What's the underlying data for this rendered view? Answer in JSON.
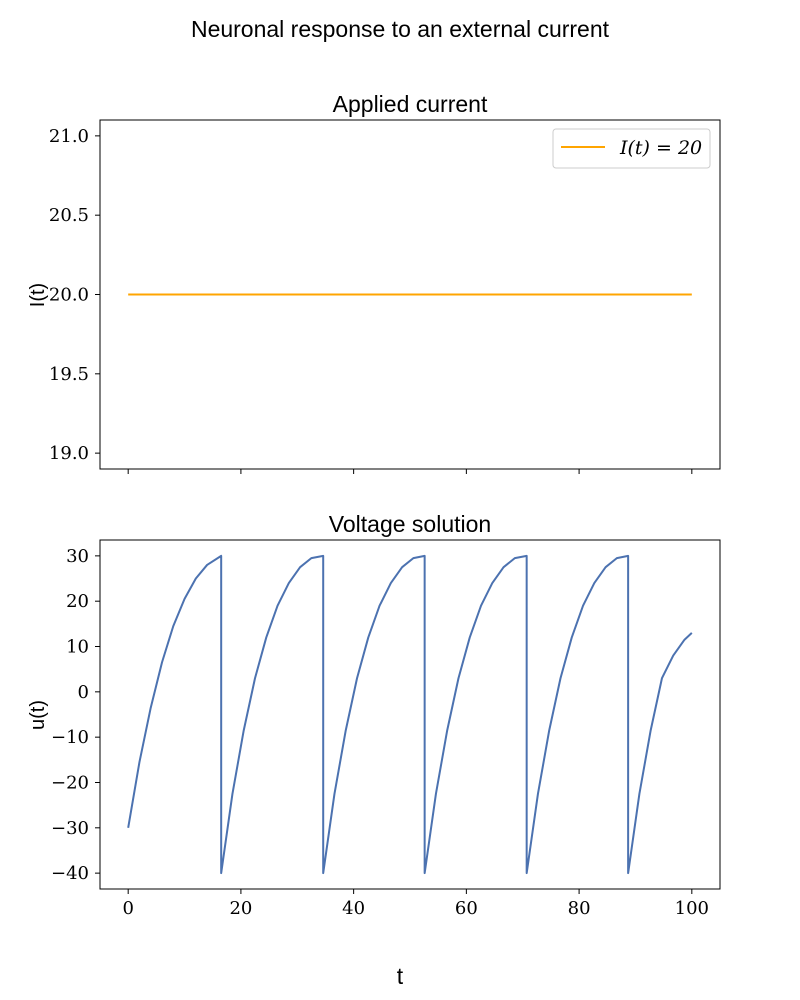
{
  "figure": {
    "suptitle": "Neuronal response to an external current",
    "xlabel": "t"
  },
  "chart_data": [
    {
      "type": "line",
      "title": "Applied current",
      "xlabel": "",
      "ylabel": "I(t)",
      "xlim": [
        -5,
        105
      ],
      "ylim": [
        18.9,
        21.1
      ],
      "xticks": [
        0,
        20,
        40,
        60,
        80,
        100
      ],
      "xtick_labels_visible": false,
      "yticks": [
        19.0,
        19.5,
        20.0,
        20.5,
        21.0
      ],
      "ytick_labels": [
        "19.0",
        "19.5",
        "20.0",
        "20.5",
        "21.0"
      ],
      "grid": false,
      "legend": {
        "placement": "top-right",
        "entries": [
          "I(t) = 20"
        ]
      },
      "series": [
        {
          "name": "I(t) = 20",
          "color": "#ffa500",
          "x": [
            0,
            100
          ],
          "y": [
            20,
            20
          ]
        }
      ]
    },
    {
      "type": "line",
      "title": "Voltage solution",
      "xlabel": "t",
      "ylabel": "u(t)",
      "xlim": [
        -5,
        105
      ],
      "ylim": [
        -43.5,
        33.5
      ],
      "xticks": [
        0,
        20,
        40,
        60,
        80,
        100
      ],
      "xtick_labels": [
        "0",
        "20",
        "40",
        "60",
        "80",
        "100"
      ],
      "yticks": [
        -40,
        -30,
        -20,
        -10,
        0,
        10,
        20,
        30
      ],
      "ytick_labels": [
        "−40",
        "−30",
        "−20",
        "−10",
        "0",
        "10",
        "20",
        "30"
      ],
      "grid": false,
      "legend": null,
      "series": [
        {
          "color": "#4c72b0",
          "x": [
            0,
            2,
            4,
            6,
            8,
            10,
            12,
            14,
            16.5,
            16.5,
            18.5,
            20.5,
            22.5,
            24.5,
            26.5,
            28.5,
            30.5,
            32.5,
            34.6,
            34.6,
            36.6,
            38.6,
            40.6,
            42.6,
            44.6,
            46.6,
            48.6,
            50.6,
            52.6,
            52.6,
            54.6,
            56.6,
            58.6,
            60.6,
            62.6,
            64.6,
            66.6,
            68.6,
            70.7,
            70.7,
            72.7,
            74.7,
            76.7,
            78.7,
            80.7,
            82.7,
            84.7,
            86.7,
            88.7,
            88.7,
            90.7,
            92.7,
            94.7,
            96.7,
            98.7,
            100
          ],
          "y": [
            -30,
            -15.5,
            -3.5,
            6.5,
            14.5,
            20.5,
            25,
            28,
            30,
            -40,
            -22.5,
            -8.5,
            3,
            12,
            19,
            24,
            27.5,
            29.5,
            30,
            -40,
            -22.5,
            -8.5,
            3,
            12,
            19,
            24,
            27.5,
            29.5,
            30,
            -40,
            -22.5,
            -8.5,
            3,
            12,
            19,
            24,
            27.5,
            29.5,
            30,
            -40,
            -22.5,
            -8.5,
            3,
            12,
            19,
            24,
            27.5,
            29.5,
            30,
            -40,
            -22.5,
            -8.5,
            3,
            8,
            11.5,
            13
          ]
        }
      ]
    }
  ]
}
